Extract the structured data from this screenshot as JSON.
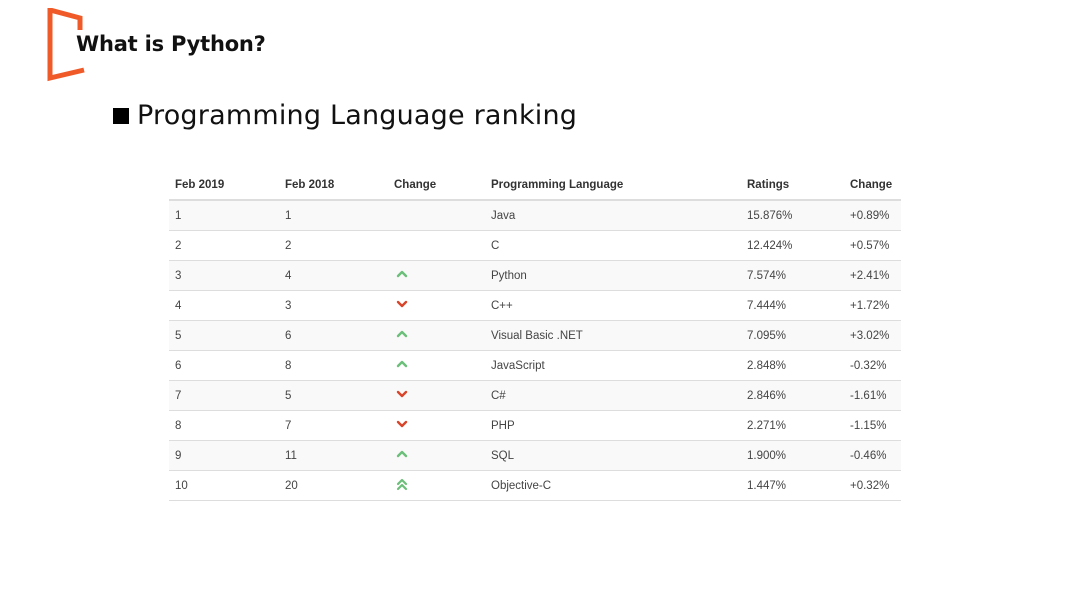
{
  "header": {
    "title": "What is Python?",
    "accent_color": "#f05a28"
  },
  "subtitle": "Programming Language ranking",
  "table": {
    "columns": [
      "Feb 2019",
      "Feb 2018",
      "Change",
      "Programming Language",
      "Ratings",
      "Change"
    ],
    "rows": [
      {
        "rank2019": "1",
        "rank2018": "1",
        "trend": "none",
        "language": "Java",
        "rating": "15.876%",
        "change": "+0.89%"
      },
      {
        "rank2019": "2",
        "rank2018": "2",
        "trend": "none",
        "language": "C",
        "rating": "12.424%",
        "change": "+0.57%"
      },
      {
        "rank2019": "3",
        "rank2018": "4",
        "trend": "up",
        "language": "Python",
        "rating": "7.574%",
        "change": "+2.41%"
      },
      {
        "rank2019": "4",
        "rank2018": "3",
        "trend": "down",
        "language": "C++",
        "rating": "7.444%",
        "change": "+1.72%"
      },
      {
        "rank2019": "5",
        "rank2018": "6",
        "trend": "up",
        "language": "Visual Basic .NET",
        "rating": "7.095%",
        "change": "+3.02%"
      },
      {
        "rank2019": "6",
        "rank2018": "8",
        "trend": "up",
        "language": "JavaScript",
        "rating": "2.848%",
        "change": "-0.32%"
      },
      {
        "rank2019": "7",
        "rank2018": "5",
        "trend": "down",
        "language": "C#",
        "rating": "2.846%",
        "change": "-1.61%"
      },
      {
        "rank2019": "8",
        "rank2018": "7",
        "trend": "down",
        "language": "PHP",
        "rating": "2.271%",
        "change": "-1.15%"
      },
      {
        "rank2019": "9",
        "rank2018": "11",
        "trend": "up",
        "language": "SQL",
        "rating": "1.900%",
        "change": "-0.46%"
      },
      {
        "rank2019": "10",
        "rank2018": "20",
        "trend": "double-up",
        "language": "Objective-C",
        "rating": "1.447%",
        "change": "+0.32%"
      }
    ],
    "trend_icons": {
      "up": "chevron-up-icon",
      "down": "chevron-down-icon",
      "double-up": "double-chevron-up-icon"
    },
    "colors": {
      "up": "#6cbf7a",
      "down": "#d9452a"
    }
  }
}
